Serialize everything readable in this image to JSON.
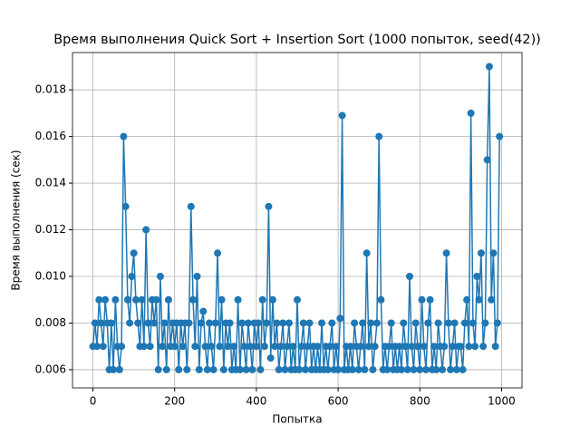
{
  "chart_data": {
    "type": "line",
    "title": "Время выполнения Quick Sort + Insertion Sort (1000 попыток, seed(42))",
    "x_label": "Попытка",
    "y_label": "Время выполнения (сек)",
    "x": [
      0,
      5,
      10,
      15,
      20,
      25,
      30,
      35,
      40,
      45,
      50,
      55,
      60,
      65,
      70,
      75,
      80,
      85,
      90,
      95,
      100,
      105,
      110,
      115,
      120,
      125,
      130,
      135,
      140,
      145,
      150,
      155,
      160,
      165,
      170,
      175,
      180,
      185,
      190,
      195,
      200,
      205,
      210,
      215,
      220,
      225,
      230,
      235,
      240,
      245,
      250,
      255,
      260,
      265,
      270,
      275,
      280,
      285,
      290,
      295,
      300,
      305,
      310,
      315,
      320,
      325,
      330,
      335,
      340,
      345,
      350,
      355,
      360,
      365,
      370,
      375,
      380,
      385,
      390,
      395,
      400,
      405,
      410,
      415,
      420,
      425,
      430,
      435,
      440,
      445,
      450,
      455,
      460,
      465,
      470,
      475,
      480,
      485,
      490,
      495,
      500,
      505,
      510,
      515,
      520,
      525,
      530,
      535,
      540,
      545,
      550,
      555,
      560,
      565,
      570,
      575,
      580,
      585,
      590,
      595,
      600,
      605,
      610,
      615,
      620,
      625,
      630,
      635,
      640,
      645,
      650,
      655,
      660,
      665,
      670,
      675,
      680,
      685,
      690,
      695,
      700,
      705,
      710,
      715,
      720,
      725,
      730,
      735,
      740,
      745,
      750,
      755,
      760,
      765,
      770,
      775,
      780,
      785,
      790,
      795,
      800,
      805,
      810,
      815,
      820,
      825,
      830,
      835,
      840,
      845,
      850,
      855,
      860,
      865,
      870,
      875,
      880,
      885,
      890,
      895,
      900,
      905,
      910,
      915,
      920,
      925,
      930,
      935,
      940,
      945,
      950,
      955,
      960,
      965,
      970,
      975,
      980,
      985,
      990,
      995
    ],
    "series": [
      {
        "name": "Время выполнения",
        "color": "#1f77b4",
        "values": [
          0.007,
          0.008,
          0.007,
          0.009,
          0.008,
          0.007,
          0.009,
          0.008,
          0.006,
          0.008,
          0.006,
          0.009,
          0.007,
          0.006,
          0.007,
          0.016,
          0.013,
          0.009,
          0.008,
          0.01,
          0.011,
          0.009,
          0.008,
          0.007,
          0.009,
          0.007,
          0.012,
          0.008,
          0.007,
          0.009,
          0.008,
          0.009,
          0.006,
          0.01,
          0.007,
          0.008,
          0.006,
          0.009,
          0.007,
          0.008,
          0.007,
          0.008,
          0.006,
          0.008,
          0.007,
          0.008,
          0.006,
          0.008,
          0.013,
          0.009,
          0.007,
          0.01,
          0.006,
          0.008,
          0.0085,
          0.007,
          0.006,
          0.008,
          0.007,
          0.006,
          0.008,
          0.011,
          0.007,
          0.009,
          0.006,
          0.008,
          0.007,
          0.008,
          0.006,
          0.007,
          0.006,
          0.009,
          0.006,
          0.008,
          0.007,
          0.006,
          0.008,
          0.007,
          0.006,
          0.008,
          0.007,
          0.008,
          0.006,
          0.009,
          0.007,
          0.008,
          0.013,
          0.0065,
          0.009,
          0.007,
          0.008,
          0.006,
          0.007,
          0.008,
          0.006,
          0.007,
          0.008,
          0.006,
          0.007,
          0.006,
          0.009,
          0.006,
          0.007,
          0.008,
          0.006,
          0.007,
          0.008,
          0.006,
          0.007,
          0.006,
          0.007,
          0.006,
          0.008,
          0.006,
          0.007,
          0.006,
          0.007,
          0.008,
          0.006,
          0.007,
          0.006,
          0.0082,
          0.0169,
          0.006,
          0.007,
          0.006,
          0.007,
          0.006,
          0.008,
          0.007,
          0.006,
          0.007,
          0.008,
          0.006,
          0.011,
          0.007,
          0.008,
          0.006,
          0.007,
          0.008,
          0.016,
          0.009,
          0.006,
          0.007,
          0.006,
          0.007,
          0.008,
          0.006,
          0.007,
          0.006,
          0.007,
          0.006,
          0.008,
          0.007,
          0.006,
          0.01,
          0.007,
          0.006,
          0.008,
          0.007,
          0.006,
          0.009,
          0.007,
          0.006,
          0.008,
          0.009,
          0.006,
          0.007,
          0.006,
          0.008,
          0.007,
          0.006,
          0.007,
          0.011,
          0.008,
          0.006,
          0.007,
          0.008,
          0.006,
          0.007,
          0.007,
          0.006,
          0.008,
          0.009,
          0.007,
          0.017,
          0.008,
          0.007,
          0.01,
          0.009,
          0.011,
          0.007,
          0.008,
          0.015,
          0.019,
          0.009,
          0.011,
          0.007,
          0.008,
          0.016
        ]
      }
    ],
    "xlim": [
      -50,
      1050
    ],
    "ylim": [
      0.00522,
      0.0196
    ],
    "xticks": [
      0,
      200,
      400,
      600,
      800,
      1000
    ],
    "yticks": [
      0.006,
      0.008,
      {
        "value": 0.01,
        "label": "0.010"
      },
      0.012,
      0.014,
      0.016,
      0.018
    ],
    "grid": true
  }
}
